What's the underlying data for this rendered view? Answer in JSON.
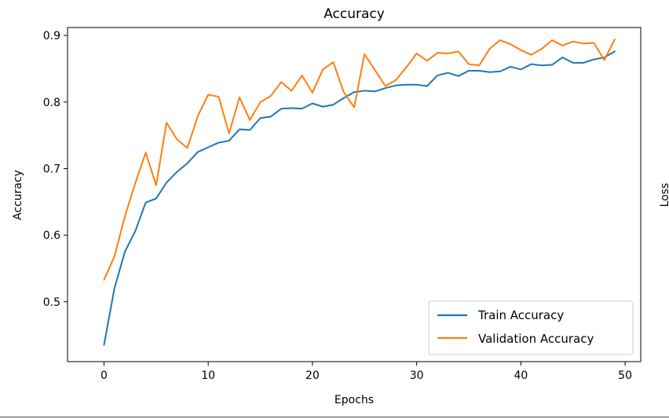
{
  "chart_data": [
    {
      "type": "line",
      "title": "Accuracy",
      "xlabel": "Epochs",
      "ylabel": "Accuracy",
      "xlim": [
        -3.5,
        51.5
      ],
      "ylim": [
        0.41,
        0.912
      ],
      "xticks": [
        0,
        10,
        20,
        30,
        40,
        50
      ],
      "xtick_labels": [
        "0",
        "10",
        "20",
        "30",
        "40",
        "50"
      ],
      "yticks": [
        0.5,
        0.6,
        0.7,
        0.8,
        0.9
      ],
      "ytick_labels": [
        "0.5",
        "0.6",
        "0.7",
        "0.8",
        "0.9"
      ],
      "grid": false,
      "legend_position": "lower-right",
      "x": [
        0,
        1,
        2,
        3,
        4,
        5,
        6,
        7,
        8,
        9,
        10,
        11,
        12,
        13,
        14,
        15,
        16,
        17,
        18,
        19,
        20,
        21,
        22,
        23,
        24,
        25,
        26,
        27,
        28,
        29,
        30,
        31,
        32,
        33,
        34,
        35,
        36,
        37,
        38,
        39,
        40,
        41,
        42,
        43,
        44,
        45,
        46,
        47,
        48,
        49
      ],
      "series": [
        {
          "name": "Train Accuracy",
          "color": "#1f77b4",
          "values": [
            0.435,
            0.52,
            0.575,
            0.606,
            0.649,
            0.655,
            0.679,
            0.695,
            0.708,
            0.725,
            0.732,
            0.739,
            0.742,
            0.759,
            0.758,
            0.776,
            0.778,
            0.79,
            0.791,
            0.79,
            0.798,
            0.793,
            0.796,
            0.806,
            0.815,
            0.817,
            0.816,
            0.821,
            0.825,
            0.826,
            0.826,
            0.824,
            0.84,
            0.844,
            0.839,
            0.847,
            0.847,
            0.845,
            0.846,
            0.853,
            0.849,
            0.857,
            0.855,
            0.856,
            0.867,
            0.859,
            0.859,
            0.864,
            0.867,
            0.876
          ]
        },
        {
          "name": "Validation Accuracy",
          "color": "#ff7f0e",
          "values": [
            0.533,
            0.568,
            0.628,
            0.678,
            0.724,
            0.675,
            0.769,
            0.744,
            0.731,
            0.779,
            0.811,
            0.808,
            0.753,
            0.807,
            0.773,
            0.8,
            0.809,
            0.83,
            0.817,
            0.84,
            0.814,
            0.849,
            0.86,
            0.815,
            0.792,
            0.872,
            0.848,
            0.824,
            0.833,
            0.852,
            0.873,
            0.862,
            0.874,
            0.873,
            0.876,
            0.857,
            0.855,
            0.88,
            0.893,
            0.887,
            0.878,
            0.871,
            0.88,
            0.893,
            0.885,
            0.891,
            0.888,
            0.889,
            0.863,
            0.894
          ]
        }
      ]
    },
    {
      "type": "line",
      "ylabel": "Loss"
    }
  ]
}
